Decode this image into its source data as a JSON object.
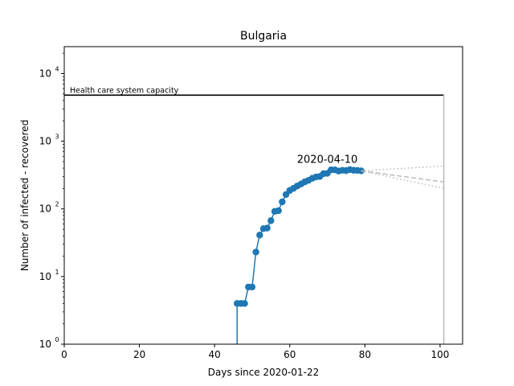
{
  "chart_data": {
    "type": "line",
    "title": "Bulgaria",
    "xlabel": "Days since 2020-01-22",
    "ylabel": "Number of infected - recovered",
    "xlim": [
      0,
      106
    ],
    "ylim": [
      1,
      25000
    ],
    "yscale": "log",
    "grid": false,
    "x_ticks": [
      0,
      20,
      40,
      60,
      80,
      100
    ],
    "x_tick_labels": [
      "0",
      "20",
      "40",
      "60",
      "80",
      "100"
    ],
    "y_ticks": [
      1,
      10,
      100,
      1000,
      10000
    ],
    "y_tick_labels": [
      "10^0",
      "10^1",
      "10^2",
      "10^3",
      "10^4"
    ],
    "series": [
      {
        "color": "#1f77b4",
        "style": "solid-with-markers",
        "x": [
          46,
          47,
          48,
          49,
          50,
          51,
          52,
          53,
          54,
          55,
          56,
          57,
          58,
          59,
          60,
          61,
          62,
          63,
          64,
          65,
          66,
          67,
          68,
          69,
          70,
          71,
          72,
          73,
          74,
          75,
          76,
          77,
          78,
          79
        ],
        "y": [
          4,
          4,
          4,
          7,
          7,
          23,
          41,
          51,
          52,
          67,
          92,
          94,
          127,
          163,
          187,
          201,
          218,
          233,
          251,
          264,
          283,
          296,
          301,
          331,
          335,
          377,
          378,
          362,
          371,
          368,
          380,
          372,
          370,
          365
        ]
      },
      {
        "color": "#bbbbbb",
        "style": "dashed",
        "x": [
          79,
          101
        ],
        "y": [
          365,
          250
        ]
      },
      {
        "color": "#bbbbbb",
        "style": "dotted",
        "x": [
          79,
          101
        ],
        "y": [
          365,
          430
        ]
      },
      {
        "color": "#bbbbbb",
        "style": "dotted",
        "x": [
          79,
          101
        ],
        "y": [
          365,
          200
        ]
      }
    ],
    "drop_line": {
      "x": 46,
      "y": 4,
      "color": "#1f77b4"
    },
    "capacity_line": {
      "value": 4800,
      "x_end": 101,
      "color": "#000000",
      "label": "Health care system capacity"
    },
    "end_line": {
      "x": 101,
      "color": "#bbbbbb"
    },
    "annotation": {
      "text": "2020-04-10",
      "x": 70,
      "y": 440
    }
  }
}
